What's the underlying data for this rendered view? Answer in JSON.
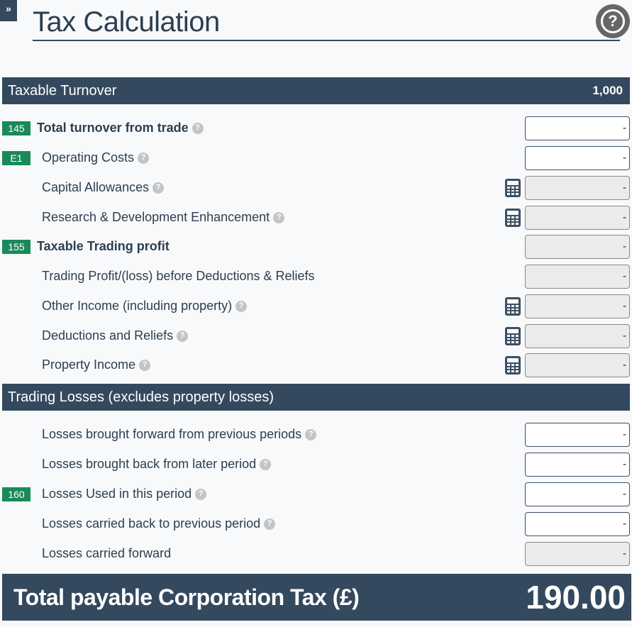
{
  "header": {
    "expand_glyph": "»",
    "title": "Tax Calculation",
    "help_glyph": "?"
  },
  "sections": {
    "taxable_turnover": {
      "label": "Taxable Turnover",
      "value": "1,000"
    },
    "trading_losses": {
      "label": "Trading Losses (excludes property losses)"
    }
  },
  "rows": [
    {
      "badge": "145",
      "label": "Total turnover from trade",
      "value": "-"
    },
    {
      "badge": "E1",
      "label": "Operating Costs",
      "value": "-"
    },
    {
      "label": "Capital Allowances",
      "value": "-"
    },
    {
      "label": "Research & Development Enhancement",
      "value": "-"
    },
    {
      "badge": "155",
      "label": "Taxable Trading profit",
      "value": "-"
    },
    {
      "label": "Trading Profit/(loss) before Deductions & Reliefs",
      "value": "-"
    },
    {
      "label": "Other Income (including property)",
      "value": "-"
    },
    {
      "label": "Deductions and Reliefs",
      "value": "-"
    },
    {
      "label": "Property Income",
      "value": "-"
    },
    {
      "label": "Losses brought forward from previous periods",
      "value": "-"
    },
    {
      "label": "Losses brought back from later period",
      "value": "-"
    },
    {
      "badge": "160",
      "label": "Losses Used in this period",
      "value": "-"
    },
    {
      "label": "Losses carried back to previous period",
      "value": "-"
    },
    {
      "label": "Losses carried forward",
      "value": "-"
    }
  ],
  "help_icon_glyph": "?",
  "total": {
    "label": "Total payable Corporation Tax (£)",
    "value": "190.00"
  },
  "colors": {
    "header_bar": "#34495e",
    "badge": "#1a8a5a",
    "text": "#2c3e50"
  },
  "icons": {
    "help": "question-circle-icon",
    "calculator": "calculator-icon",
    "expand": "double-chevron-right-icon"
  }
}
